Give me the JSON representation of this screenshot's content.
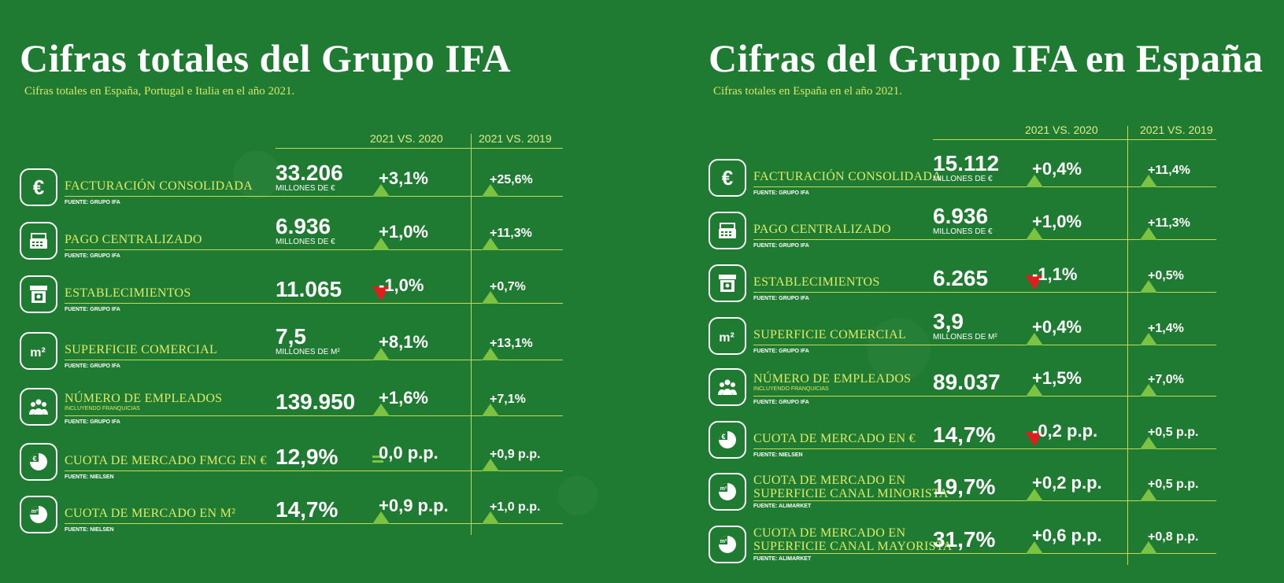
{
  "colors": {
    "background": "#1f7b31",
    "accent": "#e0ea6a",
    "up": "#7cc243",
    "down": "#e11d1d"
  },
  "left": {
    "title": "Cifras totales del Grupo IFA",
    "subtitle": "Cifras totales  en España, Portugal e Italia en el año 2021.",
    "col1": "2021 VS. 2020",
    "col2": "2021 VS. 2019",
    "rows": [
      {
        "icon": "euro-icon",
        "label": "FACTURACIÓN CONSOLIDADA",
        "source": "FUENTE: GRUPO IFA",
        "value": "33.206",
        "unit": "MILLONES DE €",
        "chg1": "+3,1%",
        "dir1": "up",
        "chg2": "+25,6%",
        "dir2": "up"
      },
      {
        "icon": "cash-register-icon",
        "label": "PAGO CENTRALIZADO",
        "source": "FUENTE: GRUPO IFA",
        "value": "6.936",
        "unit": "MILLONES DE €",
        "chg1": "+1,0%",
        "dir1": "up",
        "chg2": "+11,3%",
        "dir2": "up"
      },
      {
        "icon": "store-icon",
        "label": "ESTABLECIMIENTOS",
        "source": "FUENTE: GRUPO IFA",
        "value": "11.065",
        "unit": "",
        "chg1": "-1,0%",
        "dir1": "down",
        "chg2": "+0,7%",
        "dir2": "up"
      },
      {
        "icon": "square-meters-icon",
        "label": "SUPERFICIE COMERCIAL",
        "source": "FUENTE: GRUPO IFA",
        "value": "7,5",
        "unit": "MILLONES DE M²",
        "chg1": "+8,1%",
        "dir1": "up",
        "chg2": "+13,1%",
        "dir2": "up"
      },
      {
        "icon": "people-icon",
        "label": "NÚMERO DE EMPLEADOS",
        "sublabel": "INCLUYENDO FRANQUICIAS",
        "source": "FUENTE: GRUPO IFA",
        "value": "139.950",
        "unit": "",
        "chg1": "+1,6%",
        "dir1": "up",
        "chg2": "+7,1%",
        "dir2": "up"
      },
      {
        "icon": "euro-pie-icon",
        "label": "CUOTA DE MERCADO FMCG EN €",
        "source": "FUENTE: NIELSEN",
        "value": "12,9%",
        "unit": "",
        "chg1": "0,0 p.p.",
        "dir1": "flat",
        "chg2": "+0,9 p.p.",
        "dir2": "up"
      },
      {
        "icon": "m2-pie-icon",
        "label": "CUOTA DE MERCADO EN M²",
        "source": "FUENTE: NIELSEN",
        "value": "14,7%",
        "unit": "",
        "chg1": "+0,9 p.p.",
        "dir1": "up",
        "chg2": "+1,0 p.p.",
        "dir2": "up"
      }
    ]
  },
  "right": {
    "title": "Cifras del Grupo IFA en España",
    "subtitle": "Cifras totales en España en el año 2021.",
    "col1": "2021 VS. 2020",
    "col2": "2021 VS. 2019",
    "rows": [
      {
        "icon": "euro-icon",
        "label": "FACTURACIÓN CONSOLIDADA",
        "source": "FUENTE: GRUPO IFA",
        "value": "15.112",
        "unit": "MILLONES DE €",
        "chg1": "+0,4%",
        "dir1": "up",
        "chg2": "+11,4%",
        "dir2": "up"
      },
      {
        "icon": "cash-register-icon",
        "label": "PAGO CENTRALIZADO",
        "source": "FUENTE: GRUPO IFA",
        "value": "6.936",
        "unit": "MILLONES DE €",
        "chg1": "+1,0%",
        "dir1": "up",
        "chg2": "+11,3%",
        "dir2": "up"
      },
      {
        "icon": "store-icon",
        "label": "ESTABLECIMIENTOS",
        "source": "FUENTE: GRUPO IFA",
        "value": "6.265",
        "unit": "",
        "chg1": "-1,1%",
        "dir1": "down",
        "chg2": "+0,5%",
        "dir2": "up"
      },
      {
        "icon": "square-meters-icon",
        "label": "SUPERFICIE COMERCIAL",
        "source": "FUENTE: GRUPO IFA",
        "value": "3,9",
        "unit": "MILLONES DE M²",
        "chg1": "+0,4%",
        "dir1": "up",
        "chg2": "+1,4%",
        "dir2": "up"
      },
      {
        "icon": "people-icon",
        "label": "NÚMERO DE EMPLEADOS",
        "sublabel": "INCLUYENDO FRANQUICIAS",
        "source": "FUENTE: GRUPO IFA",
        "value": "89.037",
        "unit": "",
        "chg1": "+1,5%",
        "dir1": "up",
        "chg2": "+7,0%",
        "dir2": "up"
      },
      {
        "icon": "euro-pie-icon",
        "label": "CUOTA DE MERCADO EN €",
        "source": "FUENTE: NIELSEN",
        "value": "14,7%",
        "unit": "",
        "chg1": "-0,2 p.p.",
        "dir1": "down",
        "chg2": "+0,5 p.p.",
        "dir2": "up"
      },
      {
        "icon": "m2-pie-icon",
        "label": "CUOTA DE MERCADO EN",
        "label2": "SUPERFICIE CANAL MINORISTA",
        "source": "FUENTE: ALIMARKET",
        "value": "19,7%",
        "unit": "",
        "chg1": "+0,2 p.p.",
        "dir1": "up",
        "chg2": "+0,5 p.p.",
        "dir2": "up"
      },
      {
        "icon": "m2-pie-icon",
        "label": "CUOTA DE MERCADO EN",
        "label2": "SUPERFICIE CANAL MAYORISTA",
        "source": "FUENTE: ALIMARKET",
        "value": "31,7%",
        "unit": "",
        "chg1": "+0,6 p.p.",
        "dir1": "up",
        "chg2": "+0,8 p.p.",
        "dir2": "up"
      }
    ]
  }
}
